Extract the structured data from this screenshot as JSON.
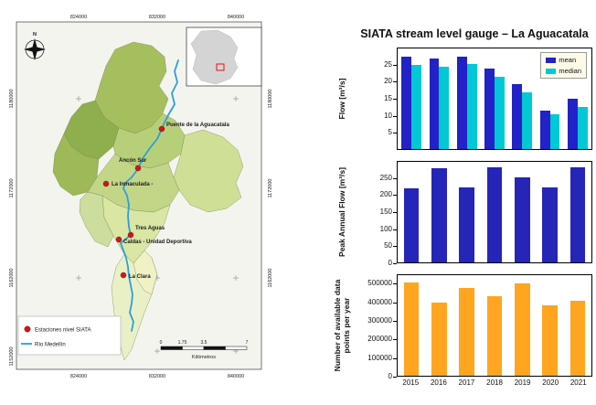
{
  "map": {
    "grid": {
      "top": [
        "824000",
        "832000",
        "840000"
      ],
      "bottom": [
        "824000",
        "832000",
        "840000"
      ],
      "left": [
        "1180000",
        "1172000",
        "1162000",
        "1152000"
      ],
      "right": [
        "1180000",
        "1172000",
        "1162000"
      ]
    },
    "north_label": "N",
    "stations": [
      {
        "name": "Puente de la Aguacatala"
      },
      {
        "name": "Ancón Sur"
      },
      {
        "name": "La Inmaculada -"
      },
      {
        "name": "Tres Aguas"
      },
      {
        "name": "Caldas - Unidad Deportiva"
      },
      {
        "name": "La Clara"
      }
    ],
    "legend": {
      "stations_label": "Estaciones nivel SIATA",
      "river_label": "Río Medellín"
    },
    "scalebar": {
      "labels": [
        "0",
        "1.75",
        "3.5",
        "7"
      ],
      "unit": "Kilómetros"
    },
    "colors": {
      "river": "#2b9fd9",
      "station_dot": "#d01818"
    }
  },
  "charts": {
    "title": "SIATA stream level gauge – La Aguacatala"
  },
  "chart_data": [
    {
      "type": "bar",
      "ylabel": "Flow [m³/s]",
      "categories": [
        "2015",
        "2016",
        "2017",
        "2018",
        "2019",
        "2020",
        "2021"
      ],
      "series": [
        {
          "name": "mean",
          "color": "#2222c8",
          "values": [
            27.5,
            27,
            27.5,
            24,
            19.5,
            11.5,
            15
          ]
        },
        {
          "name": "median",
          "color": "#00c8d4",
          "values": [
            25,
            24.5,
            25.5,
            21.5,
            17,
            10.5,
            12.5
          ]
        }
      ],
      "ylim": [
        0,
        30
      ],
      "yticks": [
        5,
        10,
        15,
        20,
        25
      ],
      "group_width": 0.72,
      "legend_position": "upper right",
      "grid": false
    },
    {
      "type": "bar",
      "ylabel": "Peak Annual Flow [m³/s]",
      "categories": [
        "2015",
        "2016",
        "2017",
        "2018",
        "2019",
        "2020",
        "2021"
      ],
      "series": [
        {
          "name": "peak annual flow",
          "color": "#2525b8",
          "values": [
            220,
            280,
            225,
            285,
            255,
            225,
            285
          ]
        }
      ],
      "ylim": [
        0,
        300
      ],
      "yticks": [
        0,
        50,
        100,
        150,
        200,
        250
      ],
      "group_width": 0.55,
      "grid": false
    },
    {
      "type": "bar",
      "ylabel": "Number of available data points per year",
      "categories": [
        "2015",
        "2016",
        "2017",
        "2018",
        "2019",
        "2020",
        "2021"
      ],
      "series": [
        {
          "name": "data points",
          "color": "#ffa520",
          "values": [
            510000,
            400000,
            480000,
            435000,
            505000,
            385000,
            410000
          ]
        }
      ],
      "ylim": [
        0,
        550000
      ],
      "yticks": [
        0,
        100000,
        200000,
        300000,
        400000,
        500000
      ],
      "group_width": 0.55,
      "grid": false,
      "xtick_labels": true
    }
  ]
}
